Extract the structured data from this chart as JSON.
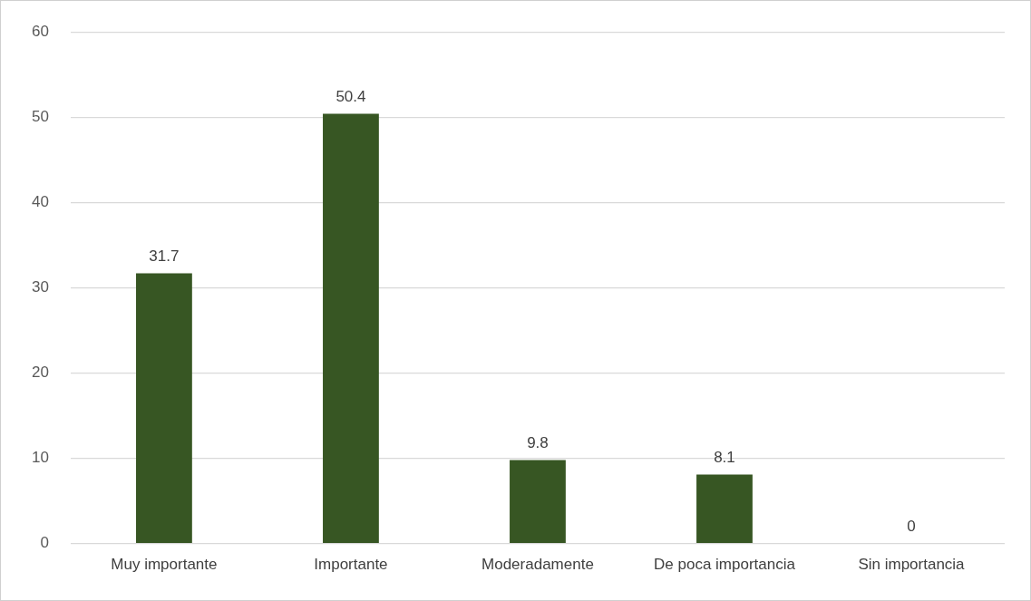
{
  "chart_data": {
    "type": "bar",
    "categories": [
      "Muy importante",
      "Importante",
      "Moderadamente",
      "De poca importancia",
      "Sin importancia"
    ],
    "values": [
      31.7,
      50.4,
      9.8,
      8.1,
      0
    ],
    "color": "#375623",
    "ylim": [
      0,
      60
    ],
    "yticks": [
      0,
      10,
      20,
      30,
      40,
      50,
      60
    ],
    "grid": "y",
    "legend": false,
    "data_labels": true
  }
}
